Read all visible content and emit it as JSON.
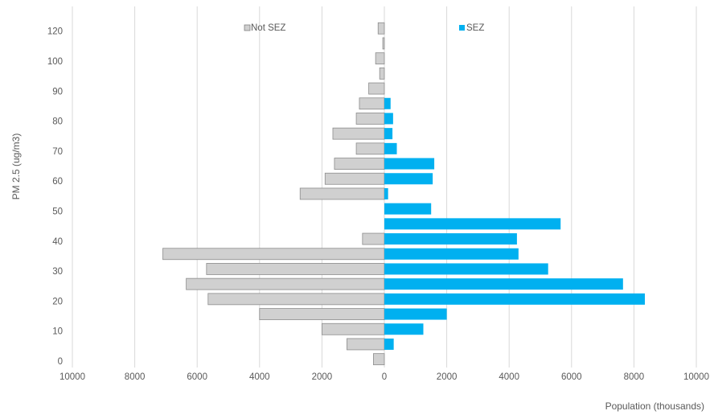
{
  "chart_data": {
    "type": "bar",
    "orientation": "horizontal",
    "layout": "population-pyramid",
    "xlabel": "Population (thousands)",
    "ylabel": "PM 2.5 (ug/m3)",
    "x_ticks": [
      "10000",
      "8000",
      "6000",
      "4000",
      "2000",
      "0",
      "2000",
      "4000",
      "6000",
      "8000",
      "10000"
    ],
    "xlim": [
      -10000,
      10000
    ],
    "y_ticks": [
      "0",
      "10",
      "20",
      "30",
      "40",
      "50",
      "60",
      "70",
      "80",
      "90",
      "100",
      "120"
    ],
    "grid": "vertical",
    "legend": "top",
    "series": [
      {
        "name": "Not SEZ",
        "side": "left",
        "color": "#d0d0d0",
        "values": [
          350,
          1200,
          2000,
          4000,
          5650,
          6350,
          5700,
          7100,
          700,
          0,
          0,
          2700,
          1900,
          1600,
          900,
          1650,
          900,
          800,
          500,
          150,
          280,
          50,
          200
        ]
      },
      {
        "name": "SEZ",
        "side": "right",
        "color": "#00b0f0",
        "values": [
          0,
          300,
          1250,
          2000,
          8350,
          7650,
          5250,
          4300,
          4250,
          5650,
          1500,
          120,
          1550,
          1600,
          400,
          260,
          280,
          200,
          0,
          0,
          0,
          0,
          0
        ]
      }
    ]
  }
}
